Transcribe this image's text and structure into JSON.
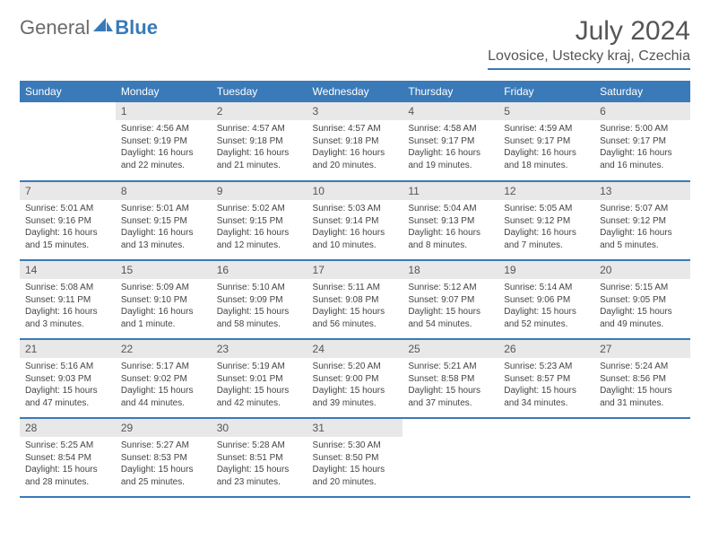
{
  "logo": {
    "part1": "General",
    "part2": "Blue"
  },
  "title": "July 2024",
  "location": "Lovosice, Ustecky kraj, Czechia",
  "colors": {
    "brand": "#3a7ab8",
    "text": "#555555",
    "daynum_bg": "#e8e8e8",
    "background": "#ffffff"
  },
  "weekdays": [
    "Sunday",
    "Monday",
    "Tuesday",
    "Wednesday",
    "Thursday",
    "Friday",
    "Saturday"
  ],
  "grid": {
    "first_weekday_index": 1,
    "days_in_month": 31
  },
  "days": {
    "1": {
      "sunrise": "4:56 AM",
      "sunset": "9:19 PM",
      "daylight": "16 hours and 22 minutes."
    },
    "2": {
      "sunrise": "4:57 AM",
      "sunset": "9:18 PM",
      "daylight": "16 hours and 21 minutes."
    },
    "3": {
      "sunrise": "4:57 AM",
      "sunset": "9:18 PM",
      "daylight": "16 hours and 20 minutes."
    },
    "4": {
      "sunrise": "4:58 AM",
      "sunset": "9:17 PM",
      "daylight": "16 hours and 19 minutes."
    },
    "5": {
      "sunrise": "4:59 AM",
      "sunset": "9:17 PM",
      "daylight": "16 hours and 18 minutes."
    },
    "6": {
      "sunrise": "5:00 AM",
      "sunset": "9:17 PM",
      "daylight": "16 hours and 16 minutes."
    },
    "7": {
      "sunrise": "5:01 AM",
      "sunset": "9:16 PM",
      "daylight": "16 hours and 15 minutes."
    },
    "8": {
      "sunrise": "5:01 AM",
      "sunset": "9:15 PM",
      "daylight": "16 hours and 13 minutes."
    },
    "9": {
      "sunrise": "5:02 AM",
      "sunset": "9:15 PM",
      "daylight": "16 hours and 12 minutes."
    },
    "10": {
      "sunrise": "5:03 AM",
      "sunset": "9:14 PM",
      "daylight": "16 hours and 10 minutes."
    },
    "11": {
      "sunrise": "5:04 AM",
      "sunset": "9:13 PM",
      "daylight": "16 hours and 8 minutes."
    },
    "12": {
      "sunrise": "5:05 AM",
      "sunset": "9:12 PM",
      "daylight": "16 hours and 7 minutes."
    },
    "13": {
      "sunrise": "5:07 AM",
      "sunset": "9:12 PM",
      "daylight": "16 hours and 5 minutes."
    },
    "14": {
      "sunrise": "5:08 AM",
      "sunset": "9:11 PM",
      "daylight": "16 hours and 3 minutes."
    },
    "15": {
      "sunrise": "5:09 AM",
      "sunset": "9:10 PM",
      "daylight": "16 hours and 1 minute."
    },
    "16": {
      "sunrise": "5:10 AM",
      "sunset": "9:09 PM",
      "daylight": "15 hours and 58 minutes."
    },
    "17": {
      "sunrise": "5:11 AM",
      "sunset": "9:08 PM",
      "daylight": "15 hours and 56 minutes."
    },
    "18": {
      "sunrise": "5:12 AM",
      "sunset": "9:07 PM",
      "daylight": "15 hours and 54 minutes."
    },
    "19": {
      "sunrise": "5:14 AM",
      "sunset": "9:06 PM",
      "daylight": "15 hours and 52 minutes."
    },
    "20": {
      "sunrise": "5:15 AM",
      "sunset": "9:05 PM",
      "daylight": "15 hours and 49 minutes."
    },
    "21": {
      "sunrise": "5:16 AM",
      "sunset": "9:03 PM",
      "daylight": "15 hours and 47 minutes."
    },
    "22": {
      "sunrise": "5:17 AM",
      "sunset": "9:02 PM",
      "daylight": "15 hours and 44 minutes."
    },
    "23": {
      "sunrise": "5:19 AM",
      "sunset": "9:01 PM",
      "daylight": "15 hours and 42 minutes."
    },
    "24": {
      "sunrise": "5:20 AM",
      "sunset": "9:00 PM",
      "daylight": "15 hours and 39 minutes."
    },
    "25": {
      "sunrise": "5:21 AM",
      "sunset": "8:58 PM",
      "daylight": "15 hours and 37 minutes."
    },
    "26": {
      "sunrise": "5:23 AM",
      "sunset": "8:57 PM",
      "daylight": "15 hours and 34 minutes."
    },
    "27": {
      "sunrise": "5:24 AM",
      "sunset": "8:56 PM",
      "daylight": "15 hours and 31 minutes."
    },
    "28": {
      "sunrise": "5:25 AM",
      "sunset": "8:54 PM",
      "daylight": "15 hours and 28 minutes."
    },
    "29": {
      "sunrise": "5:27 AM",
      "sunset": "8:53 PM",
      "daylight": "15 hours and 25 minutes."
    },
    "30": {
      "sunrise": "5:28 AM",
      "sunset": "8:51 PM",
      "daylight": "15 hours and 23 minutes."
    },
    "31": {
      "sunrise": "5:30 AM",
      "sunset": "8:50 PM",
      "daylight": "15 hours and 20 minutes."
    }
  },
  "labels": {
    "sunrise": "Sunrise:",
    "sunset": "Sunset:",
    "daylight": "Daylight:"
  }
}
